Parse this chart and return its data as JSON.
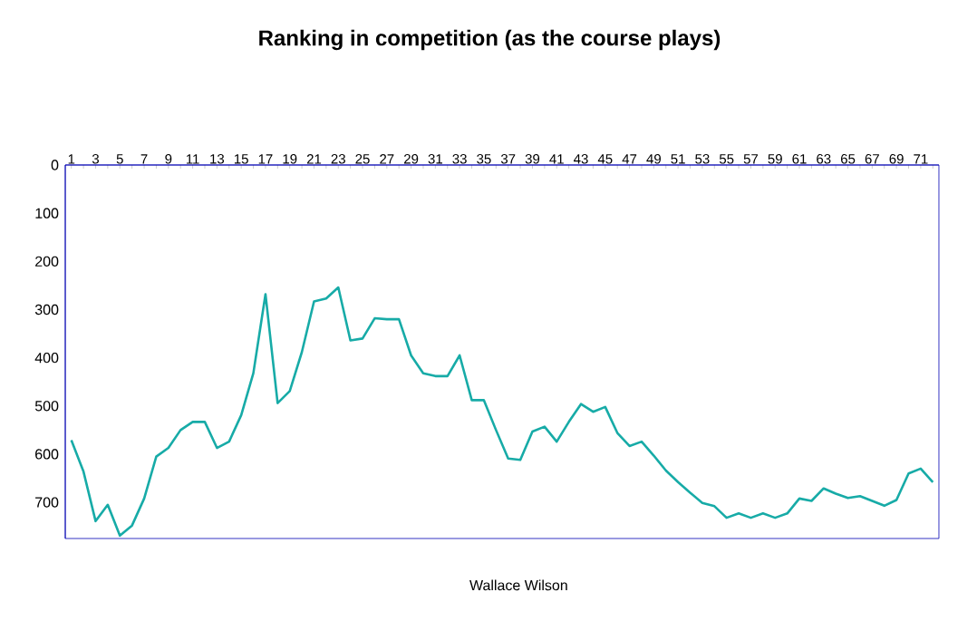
{
  "chart_data": {
    "type": "line",
    "title": "Ranking in competition (as the course plays)",
    "categories": [
      "1",
      null,
      "3",
      null,
      "5",
      null,
      "7",
      null,
      "9",
      null,
      "11",
      null,
      "13",
      null,
      "15",
      null,
      "17",
      null,
      "19",
      null,
      "21",
      null,
      "23",
      null,
      "25",
      null,
      "27",
      null,
      "29",
      null,
      "31",
      null,
      "33",
      null,
      "35",
      null,
      "37",
      null,
      "39",
      null,
      "41",
      null,
      "43",
      null,
      "45",
      null,
      "47",
      null,
      "49",
      null,
      "51",
      null,
      "53",
      null,
      "55",
      null,
      "57",
      null,
      "59",
      null,
      "61",
      null,
      "63",
      null,
      "65",
      null,
      "67",
      null,
      "69",
      null,
      "71",
      null
    ],
    "series": [
      {
        "name": "Wallace Wilson",
        "color": "#17aba7",
        "values": [
          571,
          636,
          739,
          705,
          769,
          748,
          692,
          605,
          587,
          550,
          533,
          533,
          587,
          574,
          519,
          432,
          268,
          494,
          469,
          388,
          283,
          277,
          254,
          364,
          360,
          318,
          320,
          320,
          395,
          432,
          438,
          438,
          395,
          488,
          488,
          550,
          609,
          612,
          553,
          543,
          574,
          533,
          496,
          512,
          502,
          556,
          583,
          574,
          603,
          634,
          658,
          680,
          701,
          708,
          732,
          723,
          732,
          723,
          732,
          723,
          692,
          697,
          671,
          682,
          691,
          687,
          697,
          707,
          695,
          640,
          630,
          658
        ]
      }
    ],
    "ylim": [
      775,
      0
    ],
    "yticks": [
      0,
      100,
      200,
      300,
      400,
      500,
      600,
      700
    ],
    "legend": "bottom",
    "marker": "none",
    "line_style": "solid"
  }
}
